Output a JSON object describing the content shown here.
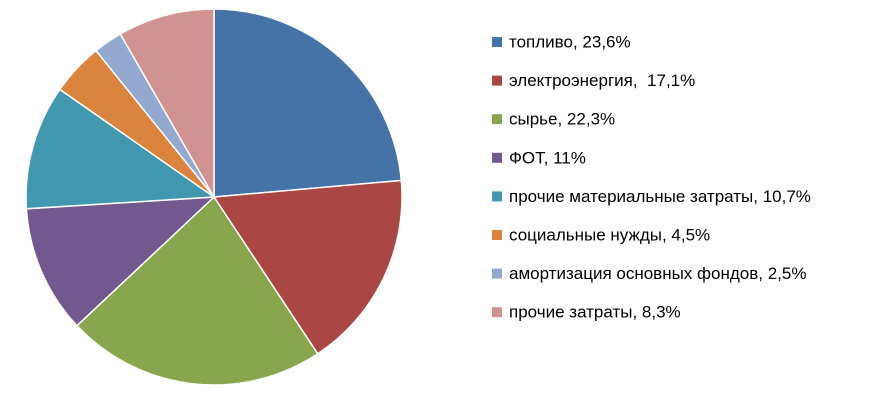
{
  "chart_data": {
    "type": "pie",
    "categories": [
      "топливо, 23,6%",
      "электроэнергия,  17,1%",
      "сырье, 22,3%",
      "ФОТ, 11%",
      "прочие материальные затраты, 10,7%",
      "социальные нужды, 4,5%",
      "амортизация основных фондов, 2,5%",
      "прочие затраты, 8,3%"
    ],
    "values": [
      23.6,
      17.1,
      22.3,
      11,
      10.7,
      4.5,
      2.5,
      8.3
    ],
    "colors": [
      "#4572a7",
      "#aa4643",
      "#89a54e",
      "#71588f",
      "#4198af",
      "#db843d",
      "#93a9cf",
      "#d19392"
    ],
    "legend": "right"
  }
}
